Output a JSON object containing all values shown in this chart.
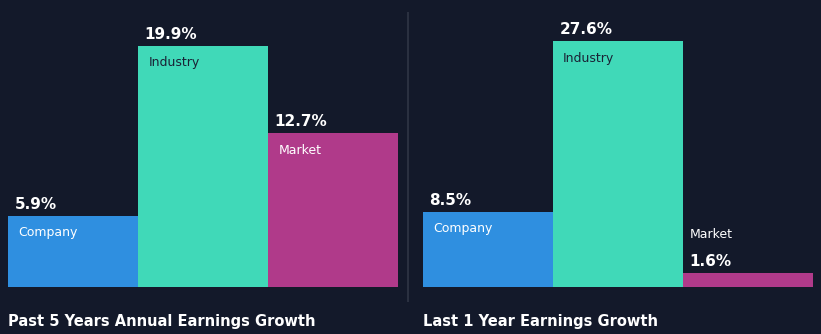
{
  "background_color": "#13192a",
  "chart_bg_color": "#13192a",
  "groups": [
    {
      "title": "Past 5 Years Annual Earnings Growth",
      "bars": [
        {
          "label": "Company",
          "value": 5.9,
          "color": "#2f8fe0"
        },
        {
          "label": "Industry",
          "value": 19.9,
          "color": "#40d9b8"
        },
        {
          "label": "Market",
          "value": 12.7,
          "color": "#b03a8a"
        }
      ]
    },
    {
      "title": "Last 1 Year Earnings Growth",
      "bars": [
        {
          "label": "Company",
          "value": 8.5,
          "color": "#2f8fe0"
        },
        {
          "label": "Industry",
          "value": 27.6,
          "color": "#40d9b8"
        },
        {
          "label": "Market",
          "value": 1.6,
          "color": "#b03a8a"
        }
      ]
    }
  ],
  "text_color": "#ffffff",
  "label_color_dark": "#1a2235",
  "divider_color": "#2a3040",
  "value_fontsize": 11,
  "label_fontsize": 9,
  "title_fontsize": 10.5,
  "ylim_left": [
    0,
    22
  ],
  "ylim_right": [
    0,
    30
  ]
}
